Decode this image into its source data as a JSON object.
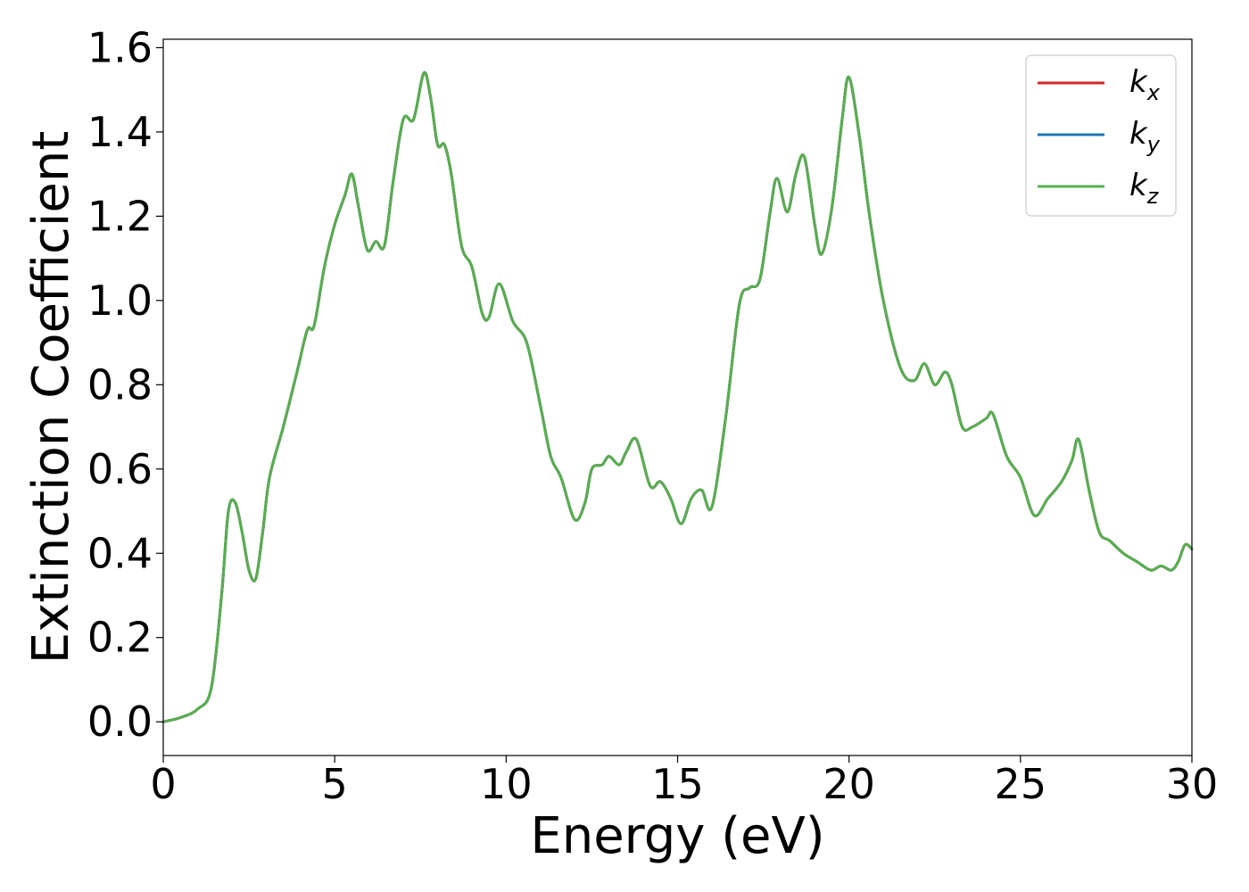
{
  "chart_data": {
    "type": "line",
    "title": "",
    "xlabel": "Energy (eV)",
    "ylabel": "Extinction Coefficient",
    "xlim": [
      0,
      30
    ],
    "ylim": [
      -0.08,
      1.62
    ],
    "xticks": [
      0,
      5,
      10,
      15,
      20,
      25,
      30
    ],
    "yticks": [
      0.0,
      0.2,
      0.4,
      0.6,
      0.8,
      1.0,
      1.2,
      1.4,
      1.6
    ],
    "ytick_labels": [
      "0.0",
      "0.2",
      "0.4",
      "0.6",
      "0.8",
      "1.0",
      "1.2",
      "1.4",
      "1.6"
    ],
    "grid": false,
    "legend_position": "top-right",
    "x": [
      0,
      0.5,
      1.0,
      1.4,
      1.7,
      1.9,
      2.1,
      2.3,
      2.5,
      2.7,
      2.9,
      3.1,
      3.5,
      3.9,
      4.2,
      4.4,
      4.7,
      5.0,
      5.3,
      5.5,
      5.7,
      5.95,
      6.2,
      6.45,
      6.7,
      7.0,
      7.3,
      7.6,
      7.8,
      8.0,
      8.2,
      8.4,
      8.7,
      9.0,
      9.3,
      9.5,
      9.8,
      10.2,
      10.6,
      11.0,
      11.3,
      11.6,
      12.0,
      12.3,
      12.5,
      12.8,
      13.0,
      13.3,
      13.5,
      13.8,
      14.2,
      14.5,
      14.8,
      15.1,
      15.4,
      15.7,
      16.0,
      16.4,
      16.8,
      17.1,
      17.4,
      17.7,
      17.9,
      18.2,
      18.45,
      18.7,
      19.0,
      19.2,
      19.5,
      19.8,
      20.0,
      20.3,
      20.6,
      21.0,
      21.5,
      21.9,
      22.2,
      22.5,
      22.8,
      23.0,
      23.3,
      23.6,
      24.0,
      24.2,
      24.6,
      25.0,
      25.4,
      25.8,
      26.2,
      26.5,
      26.7,
      27.0,
      27.3,
      27.6,
      28.0,
      28.4,
      28.8,
      29.1,
      29.4,
      29.6,
      29.8,
      30.0
    ],
    "series": [
      {
        "name": "kx",
        "color": "#d62728",
        "values": [
          0.0,
          0.01,
          0.03,
          0.08,
          0.3,
          0.5,
          0.52,
          0.45,
          0.36,
          0.34,
          0.45,
          0.58,
          0.7,
          0.83,
          0.93,
          0.94,
          1.08,
          1.18,
          1.25,
          1.3,
          1.22,
          1.12,
          1.14,
          1.13,
          1.28,
          1.43,
          1.43,
          1.54,
          1.48,
          1.37,
          1.37,
          1.3,
          1.13,
          1.08,
          0.97,
          0.96,
          1.04,
          0.95,
          0.9,
          0.75,
          0.63,
          0.58,
          0.48,
          0.52,
          0.6,
          0.61,
          0.63,
          0.61,
          0.64,
          0.67,
          0.56,
          0.57,
          0.53,
          0.47,
          0.53,
          0.55,
          0.51,
          0.72,
          0.99,
          1.03,
          1.05,
          1.21,
          1.29,
          1.21,
          1.3,
          1.34,
          1.18,
          1.11,
          1.22,
          1.43,
          1.53,
          1.39,
          1.2,
          1.0,
          0.84,
          0.81,
          0.85,
          0.8,
          0.83,
          0.8,
          0.7,
          0.7,
          0.72,
          0.73,
          0.63,
          0.58,
          0.49,
          0.53,
          0.57,
          0.62,
          0.67,
          0.55,
          0.45,
          0.43,
          0.4,
          0.38,
          0.36,
          0.37,
          0.36,
          0.38,
          0.42,
          0.41
        ]
      },
      {
        "name": "ky",
        "color": "#1f77b4",
        "values": [
          0.0,
          0.01,
          0.03,
          0.08,
          0.3,
          0.5,
          0.52,
          0.45,
          0.36,
          0.34,
          0.45,
          0.58,
          0.7,
          0.83,
          0.93,
          0.94,
          1.08,
          1.18,
          1.25,
          1.3,
          1.22,
          1.12,
          1.14,
          1.13,
          1.28,
          1.43,
          1.43,
          1.54,
          1.48,
          1.37,
          1.37,
          1.3,
          1.13,
          1.08,
          0.97,
          0.96,
          1.04,
          0.95,
          0.9,
          0.75,
          0.63,
          0.58,
          0.48,
          0.52,
          0.6,
          0.61,
          0.63,
          0.61,
          0.64,
          0.67,
          0.56,
          0.57,
          0.53,
          0.47,
          0.53,
          0.55,
          0.51,
          0.72,
          0.99,
          1.03,
          1.05,
          1.21,
          1.29,
          1.21,
          1.3,
          1.34,
          1.18,
          1.11,
          1.22,
          1.43,
          1.53,
          1.39,
          1.2,
          1.0,
          0.84,
          0.81,
          0.85,
          0.8,
          0.83,
          0.8,
          0.7,
          0.7,
          0.72,
          0.73,
          0.63,
          0.58,
          0.49,
          0.53,
          0.57,
          0.62,
          0.67,
          0.55,
          0.45,
          0.43,
          0.4,
          0.38,
          0.36,
          0.37,
          0.36,
          0.38,
          0.42,
          0.41
        ]
      },
      {
        "name": "kz",
        "color": "#5aad4f",
        "values": [
          0.0,
          0.01,
          0.03,
          0.08,
          0.3,
          0.5,
          0.52,
          0.45,
          0.36,
          0.34,
          0.45,
          0.58,
          0.7,
          0.83,
          0.93,
          0.94,
          1.08,
          1.18,
          1.25,
          1.3,
          1.22,
          1.12,
          1.14,
          1.13,
          1.28,
          1.43,
          1.43,
          1.54,
          1.48,
          1.37,
          1.37,
          1.3,
          1.13,
          1.08,
          0.97,
          0.96,
          1.04,
          0.95,
          0.9,
          0.75,
          0.63,
          0.58,
          0.48,
          0.52,
          0.6,
          0.61,
          0.63,
          0.61,
          0.64,
          0.67,
          0.56,
          0.57,
          0.53,
          0.47,
          0.53,
          0.55,
          0.51,
          0.72,
          0.99,
          1.03,
          1.05,
          1.21,
          1.29,
          1.21,
          1.3,
          1.34,
          1.18,
          1.11,
          1.22,
          1.43,
          1.53,
          1.39,
          1.2,
          1.0,
          0.84,
          0.81,
          0.85,
          0.8,
          0.83,
          0.8,
          0.7,
          0.7,
          0.72,
          0.73,
          0.63,
          0.58,
          0.49,
          0.53,
          0.57,
          0.62,
          0.67,
          0.55,
          0.45,
          0.43,
          0.4,
          0.38,
          0.36,
          0.37,
          0.36,
          0.38,
          0.42,
          0.41
        ]
      }
    ],
    "legend": [
      {
        "base": "k",
        "sub": "x",
        "color": "#d62728"
      },
      {
        "base": "k",
        "sub": "y",
        "color": "#1f77b4"
      },
      {
        "base": "k",
        "sub": "z",
        "color": "#5aad4f"
      }
    ]
  }
}
